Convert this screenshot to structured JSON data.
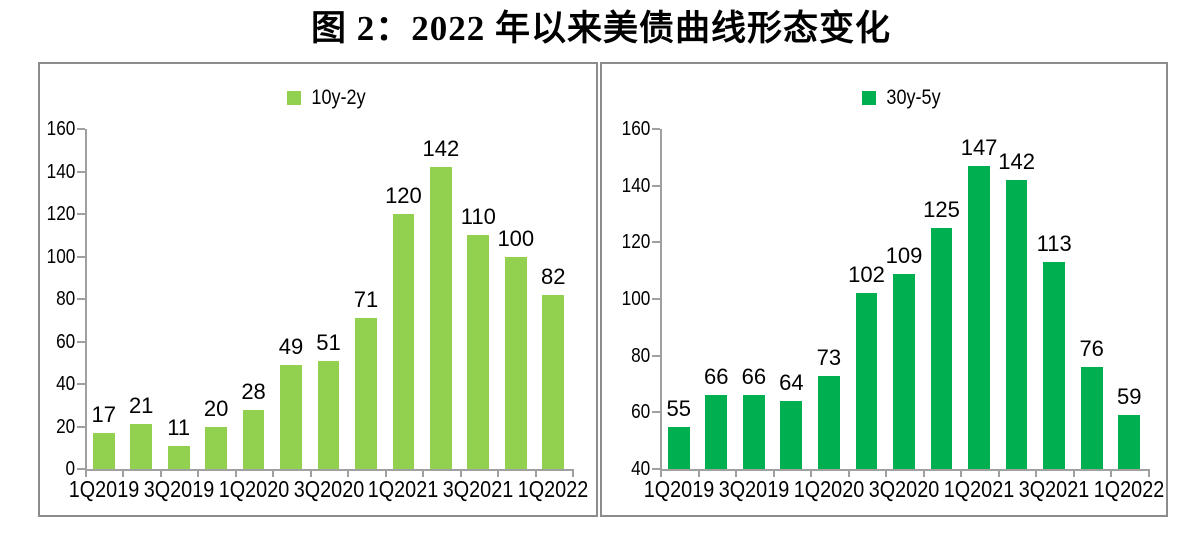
{
  "page": {
    "title": "图 2：2022 年以来美债曲线形态变化"
  },
  "colors": {
    "axis": "#a0a0a0",
    "panel_border": "#8c8c8c",
    "text": "#000000",
    "left_bar": "#92d050",
    "right_bar": "#00b050"
  },
  "chart_data": [
    {
      "type": "bar",
      "legend": "10y-2y",
      "legend_position": "top-center",
      "bar_color": "#92d050",
      "values": [
        17,
        21,
        11,
        20,
        28,
        49,
        51,
        71,
        120,
        142,
        110,
        100,
        82
      ],
      "data_labels": [
        17,
        21,
        11,
        20,
        28,
        49,
        51,
        71,
        120,
        142,
        110,
        100,
        82
      ],
      "x_tick_labels": [
        "1Q2019",
        "3Q2019",
        "1Q2020",
        "3Q2020",
        "1Q2021",
        "3Q2021",
        "1Q2022"
      ],
      "x_tick_every": 2,
      "y_tick_labels": [
        0,
        20,
        40,
        60,
        80,
        100,
        120,
        140,
        160
      ],
      "ylim": [
        0,
        160
      ],
      "ytick_step": 20,
      "grid": false
    },
    {
      "type": "bar",
      "legend": "30y-5y",
      "legend_position": "top-center",
      "bar_color": "#00b050",
      "values": [
        55,
        66,
        66,
        64,
        73,
        102,
        109,
        125,
        147,
        142,
        113,
        76,
        59
      ],
      "data_labels": [
        55,
        66,
        66,
        64,
        73,
        102,
        109,
        125,
        147,
        142,
        113,
        76,
        59
      ],
      "x_tick_labels": [
        "1Q2019",
        "3Q2019",
        "1Q2020",
        "3Q2020",
        "1Q2021",
        "3Q2021",
        "1Q2022"
      ],
      "x_tick_every": 2,
      "y_tick_labels": [
        40,
        60,
        80,
        100,
        120,
        140,
        160
      ],
      "ylim": [
        40,
        160
      ],
      "ytick_step": 20,
      "grid": false
    }
  ]
}
